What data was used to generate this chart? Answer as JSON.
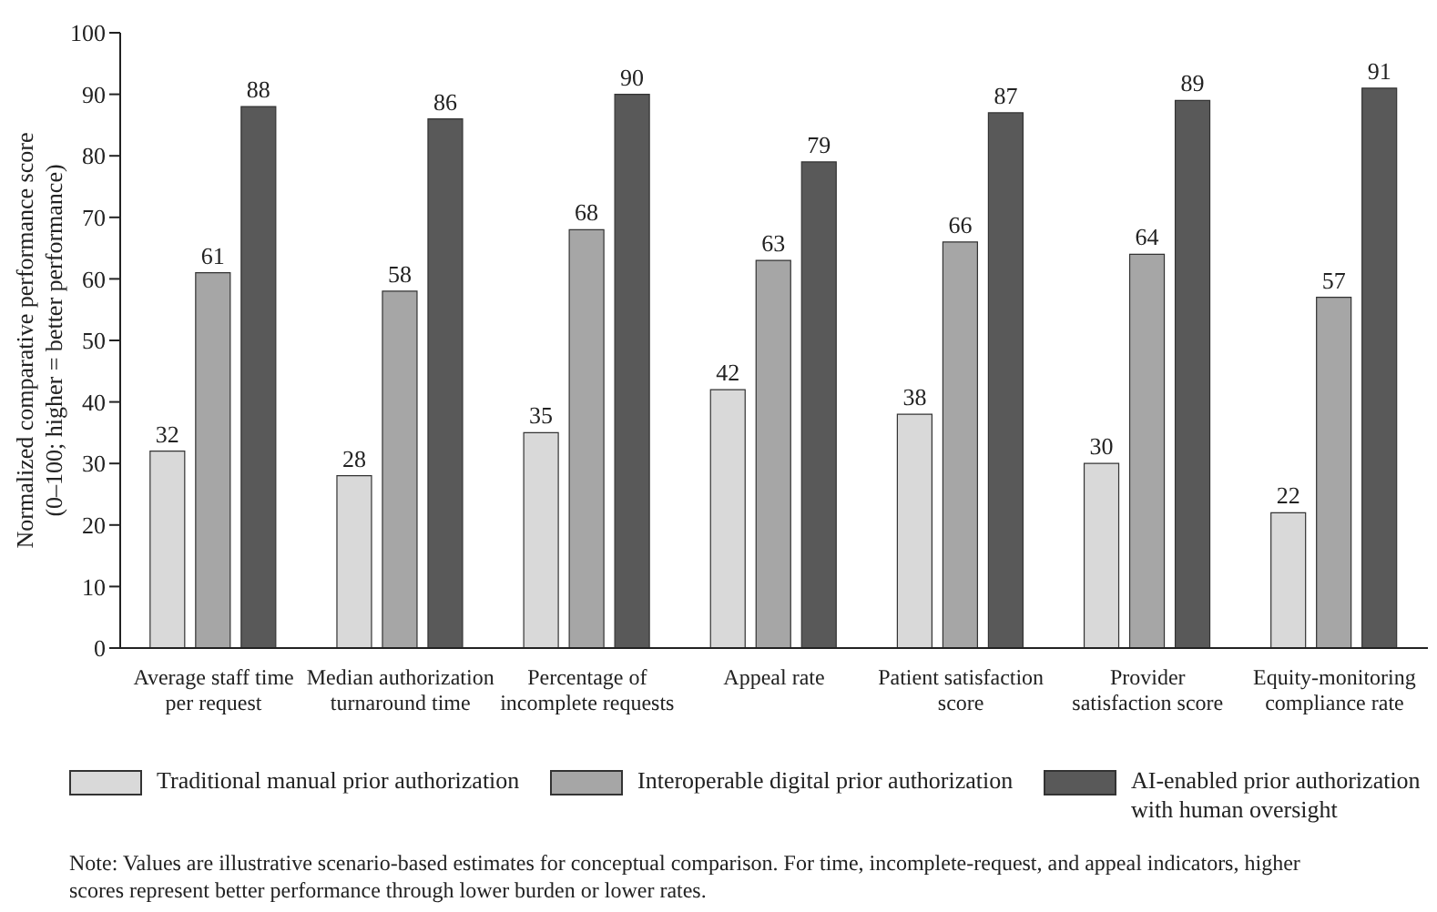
{
  "chart_data": {
    "type": "bar",
    "ylabel": "Normalized comparative performance score (0–100; higher = better performance)",
    "categories": [
      "Average staff time per request",
      "Median authorization turnaround time",
      "Percentage of incomplete requests",
      "Appeal rate",
      "Patient satisfaction score",
      "Provider satisfaction score",
      "Equity-monitoring compliance rate"
    ],
    "series": [
      {
        "name": "Traditional manual prior authorization",
        "color": "#d9d9d9",
        "values": [
          32,
          28,
          35,
          42,
          38,
          30,
          22
        ]
      },
      {
        "name": "Interoperable digital prior authorization",
        "color": "#a6a6a6",
        "values": [
          61,
          58,
          68,
          63,
          66,
          64,
          57
        ]
      },
      {
        "name": "AI-enabled prior authorization with human oversight",
        "color": "#595959",
        "values": [
          88,
          86,
          90,
          79,
          87,
          89,
          91
        ]
      }
    ],
    "ylim": [
      0,
      100
    ],
    "yticks": [
      0,
      10,
      20,
      30,
      40,
      50,
      60,
      70,
      80,
      90,
      100
    ],
    "grid": false,
    "legend": "bottom",
    "data_labels": true,
    "annotations": [
      "Note: Values are illustrative scenario-based estimates for conceptual comparison. For time, incomplete-request, and appeal indicators, higher scores represent better performance through lower burden or lower rates."
    ]
  }
}
